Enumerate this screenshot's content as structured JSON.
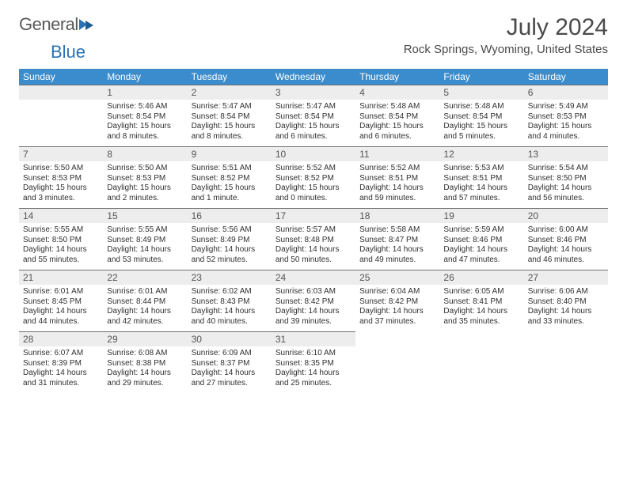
{
  "logo": {
    "part1": "General",
    "part2": "Blue"
  },
  "title": "July 2024",
  "location": "Rock Springs, Wyoming, United States",
  "day_headers": [
    "Sunday",
    "Monday",
    "Tuesday",
    "Wednesday",
    "Thursday",
    "Friday",
    "Saturday"
  ],
  "colors": {
    "header_bg": "#3b8ccc",
    "header_fg": "#ffffff",
    "daynum_bg": "#ededed",
    "daynum_border": "#707070",
    "text": "#303030",
    "title": "#4a4a4a",
    "logo_gray": "#5a5a5a",
    "logo_blue": "#2a72b5"
  },
  "first_weekday_index": 1,
  "days": [
    {
      "n": 1,
      "sr": "5:46 AM",
      "ss": "8:54 PM",
      "dl": "15 hours and 8 minutes."
    },
    {
      "n": 2,
      "sr": "5:47 AM",
      "ss": "8:54 PM",
      "dl": "15 hours and 8 minutes."
    },
    {
      "n": 3,
      "sr": "5:47 AM",
      "ss": "8:54 PM",
      "dl": "15 hours and 6 minutes."
    },
    {
      "n": 4,
      "sr": "5:48 AM",
      "ss": "8:54 PM",
      "dl": "15 hours and 6 minutes."
    },
    {
      "n": 5,
      "sr": "5:48 AM",
      "ss": "8:54 PM",
      "dl": "15 hours and 5 minutes."
    },
    {
      "n": 6,
      "sr": "5:49 AM",
      "ss": "8:53 PM",
      "dl": "15 hours and 4 minutes."
    },
    {
      "n": 7,
      "sr": "5:50 AM",
      "ss": "8:53 PM",
      "dl": "15 hours and 3 minutes."
    },
    {
      "n": 8,
      "sr": "5:50 AM",
      "ss": "8:53 PM",
      "dl": "15 hours and 2 minutes."
    },
    {
      "n": 9,
      "sr": "5:51 AM",
      "ss": "8:52 PM",
      "dl": "15 hours and 1 minute."
    },
    {
      "n": 10,
      "sr": "5:52 AM",
      "ss": "8:52 PM",
      "dl": "15 hours and 0 minutes."
    },
    {
      "n": 11,
      "sr": "5:52 AM",
      "ss": "8:51 PM",
      "dl": "14 hours and 59 minutes."
    },
    {
      "n": 12,
      "sr": "5:53 AM",
      "ss": "8:51 PM",
      "dl": "14 hours and 57 minutes."
    },
    {
      "n": 13,
      "sr": "5:54 AM",
      "ss": "8:50 PM",
      "dl": "14 hours and 56 minutes."
    },
    {
      "n": 14,
      "sr": "5:55 AM",
      "ss": "8:50 PM",
      "dl": "14 hours and 55 minutes."
    },
    {
      "n": 15,
      "sr": "5:55 AM",
      "ss": "8:49 PM",
      "dl": "14 hours and 53 minutes."
    },
    {
      "n": 16,
      "sr": "5:56 AM",
      "ss": "8:49 PM",
      "dl": "14 hours and 52 minutes."
    },
    {
      "n": 17,
      "sr": "5:57 AM",
      "ss": "8:48 PM",
      "dl": "14 hours and 50 minutes."
    },
    {
      "n": 18,
      "sr": "5:58 AM",
      "ss": "8:47 PM",
      "dl": "14 hours and 49 minutes."
    },
    {
      "n": 19,
      "sr": "5:59 AM",
      "ss": "8:46 PM",
      "dl": "14 hours and 47 minutes."
    },
    {
      "n": 20,
      "sr": "6:00 AM",
      "ss": "8:46 PM",
      "dl": "14 hours and 46 minutes."
    },
    {
      "n": 21,
      "sr": "6:01 AM",
      "ss": "8:45 PM",
      "dl": "14 hours and 44 minutes."
    },
    {
      "n": 22,
      "sr": "6:01 AM",
      "ss": "8:44 PM",
      "dl": "14 hours and 42 minutes."
    },
    {
      "n": 23,
      "sr": "6:02 AM",
      "ss": "8:43 PM",
      "dl": "14 hours and 40 minutes."
    },
    {
      "n": 24,
      "sr": "6:03 AM",
      "ss": "8:42 PM",
      "dl": "14 hours and 39 minutes."
    },
    {
      "n": 25,
      "sr": "6:04 AM",
      "ss": "8:42 PM",
      "dl": "14 hours and 37 minutes."
    },
    {
      "n": 26,
      "sr": "6:05 AM",
      "ss": "8:41 PM",
      "dl": "14 hours and 35 minutes."
    },
    {
      "n": 27,
      "sr": "6:06 AM",
      "ss": "8:40 PM",
      "dl": "14 hours and 33 minutes."
    },
    {
      "n": 28,
      "sr": "6:07 AM",
      "ss": "8:39 PM",
      "dl": "14 hours and 31 minutes."
    },
    {
      "n": 29,
      "sr": "6:08 AM",
      "ss": "8:38 PM",
      "dl": "14 hours and 29 minutes."
    },
    {
      "n": 30,
      "sr": "6:09 AM",
      "ss": "8:37 PM",
      "dl": "14 hours and 27 minutes."
    },
    {
      "n": 31,
      "sr": "6:10 AM",
      "ss": "8:35 PM",
      "dl": "14 hours and 25 minutes."
    }
  ],
  "labels": {
    "sunrise": "Sunrise: ",
    "sunset": "Sunset: ",
    "daylight": "Daylight: "
  }
}
